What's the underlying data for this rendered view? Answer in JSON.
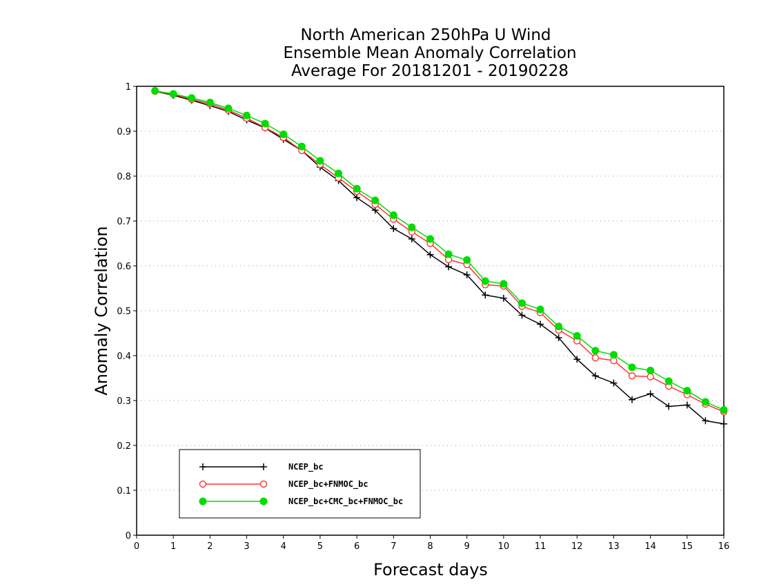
{
  "chart_data": {
    "type": "line",
    "title_lines": [
      "North American 250hPa U Wind",
      "Ensemble Mean Anomaly Correlation",
      "Average For 20181201 - 20190228"
    ],
    "xlabel": "Forecast days",
    "ylabel": "Anomaly Correlation",
    "xlim": [
      0,
      16
    ],
    "ylim": [
      0,
      1
    ],
    "xticks": [
      "0",
      "1",
      "2",
      "3",
      "4",
      "5",
      "6",
      "7",
      "8",
      "9",
      "10",
      "11",
      "12",
      "13",
      "14",
      "15",
      "16"
    ],
    "yticks": [
      "0",
      "0.1",
      "0.2",
      "0.3",
      "0.4",
      "0.5",
      "0.6",
      "0.7",
      "0.8",
      "0.9",
      "1"
    ],
    "grid": "horizontal dotted",
    "legend_position": "bottom-left",
    "x": [
      0.5,
      1,
      1.5,
      2,
      2.5,
      3,
      3.5,
      4,
      4.5,
      5,
      5.5,
      6,
      6.5,
      7,
      7.5,
      8,
      8.5,
      9,
      9.5,
      10,
      10.5,
      11,
      11.5,
      12,
      12.5,
      13,
      13.5,
      14,
      14.5,
      15,
      15.5,
      16
    ],
    "series": [
      {
        "name": "NCEP_bc",
        "color": "#000000",
        "marker": "plus",
        "values": [
          0.989,
          0.98,
          0.969,
          0.957,
          0.944,
          0.925,
          0.907,
          0.882,
          0.857,
          0.82,
          0.79,
          0.752,
          0.724,
          0.683,
          0.66,
          0.625,
          0.598,
          0.58,
          0.535,
          0.528,
          0.49,
          0.47,
          0.44,
          0.392,
          0.355,
          0.339,
          0.302,
          0.315,
          0.287,
          0.29,
          0.255,
          0.248
        ]
      },
      {
        "name": "NCEP_bc+FNMOC_bc",
        "color": "#ff3333",
        "marker": "open-circle",
        "values": [
          0.989,
          0.982,
          0.971,
          0.961,
          0.947,
          0.929,
          0.908,
          0.886,
          0.857,
          0.826,
          0.796,
          0.766,
          0.737,
          0.704,
          0.676,
          0.65,
          0.614,
          0.603,
          0.558,
          0.555,
          0.51,
          0.496,
          0.457,
          0.433,
          0.395,
          0.389,
          0.355,
          0.353,
          0.332,
          0.313,
          0.292,
          0.275
        ]
      },
      {
        "name": "NCEP_bc+CMC_bc+FNMOC_bc",
        "color": "#00dd00",
        "marker": "filled-circle",
        "values": [
          0.99,
          0.983,
          0.974,
          0.964,
          0.951,
          0.935,
          0.917,
          0.893,
          0.866,
          0.834,
          0.806,
          0.772,
          0.746,
          0.713,
          0.686,
          0.66,
          0.626,
          0.613,
          0.566,
          0.56,
          0.517,
          0.503,
          0.465,
          0.444,
          0.411,
          0.402,
          0.374,
          0.367,
          0.343,
          0.322,
          0.297,
          0.279
        ]
      }
    ]
  }
}
